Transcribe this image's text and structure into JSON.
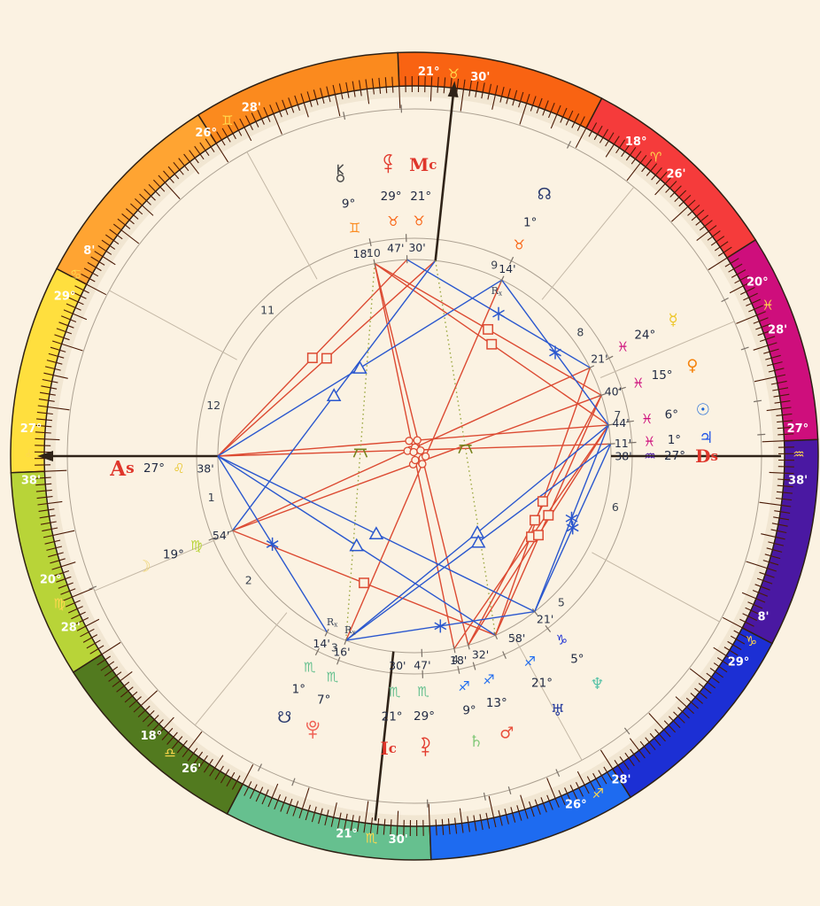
{
  "chart_data": {
    "type": "astrology-natal-wheel",
    "background": "#FBF2E2",
    "ascendant_longitude": 147.633,
    "ring": {
      "label_color": "#FFFFFF",
      "sign_glyph_color": "#FFD84D",
      "tick_color": "#4A1A06",
      "outline_color": "#2E2014"
    },
    "signs": [
      {
        "name": "aries",
        "glyph": "♈",
        "color": "#F53B3B"
      },
      {
        "name": "taurus",
        "glyph": "♉",
        "color": "#F96312"
      },
      {
        "name": "gemini",
        "glyph": "♊",
        "color": "#FB8A1E"
      },
      {
        "name": "cancer",
        "glyph": "♋",
        "color": "#FFA432"
      },
      {
        "name": "leo",
        "glyph": "♌",
        "color": "#FFDF3E",
        "label_color": "#E8C62C"
      },
      {
        "name": "virgo",
        "glyph": "♍",
        "color": "#B8D438"
      },
      {
        "name": "libra",
        "glyph": "♎",
        "color": "#527A1F"
      },
      {
        "name": "scorpio",
        "glyph": "♏",
        "color": "#66C08F"
      },
      {
        "name": "sagittarius",
        "glyph": "♐",
        "color": "#1E6BF0"
      },
      {
        "name": "capricorn",
        "glyph": "♑",
        "color": "#1C2FD4"
      },
      {
        "name": "aquarius",
        "glyph": "♒",
        "color": "#4A18A2"
      },
      {
        "name": "pisces",
        "glyph": "♓",
        "color": "#CE0E7C"
      }
    ],
    "house_cusps": [
      {
        "house": 1,
        "deg": "27°",
        "sign": "leo",
        "min": "38'",
        "lon": 147.633
      },
      {
        "house": 2,
        "deg": "20°",
        "sign": "virgo",
        "min": "28'",
        "lon": 170.467
      },
      {
        "house": 3,
        "deg": "18°",
        "sign": "libra",
        "min": "26'",
        "lon": 198.433
      },
      {
        "house": 4,
        "deg": "21°",
        "sign": "scorpio",
        "min": "30'",
        "lon": 231.5
      },
      {
        "house": 5,
        "deg": "26°",
        "sign": "sagittarius",
        "min": "28'",
        "lon": 266.467
      },
      {
        "house": 6,
        "deg": "29°",
        "sign": "capricorn",
        "min": "8'",
        "lon": 299.133
      },
      {
        "house": 7,
        "deg": "27°",
        "sign": "aquarius",
        "min": "38'",
        "lon": 327.633
      },
      {
        "house": 8,
        "deg": "20°",
        "sign": "pisces",
        "min": "28'",
        "lon": 350.467
      },
      {
        "house": 9,
        "deg": "18°",
        "sign": "aries",
        "min": "26'",
        "lon": 18.433
      },
      {
        "house": 10,
        "deg": "21°",
        "sign": "taurus",
        "min": "30'",
        "lon": 51.5
      },
      {
        "house": 11,
        "deg": "26°",
        "sign": "gemini",
        "min": "28'",
        "lon": 86.467
      },
      {
        "house": 12,
        "deg": "29°",
        "sign": "cancer",
        "min": "8'",
        "lon": 119.133
      }
    ],
    "points": [
      {
        "name": "sun",
        "kind": "planet",
        "glyph": "☉",
        "color": "#1B66D6",
        "deg": "6°",
        "sign": "pisces",
        "min": "44'",
        "retro": false,
        "lon": 336.733
      },
      {
        "name": "moon",
        "kind": "planet",
        "glyph": "☽",
        "color": "#EFD46F",
        "deg": "19°",
        "sign": "virgo",
        "min": "54'",
        "retro": false,
        "lon": 169.9
      },
      {
        "name": "mercury",
        "kind": "planet",
        "glyph": "☿",
        "color": "#EDC62A",
        "deg": "24°",
        "sign": "pisces",
        "min": "21'",
        "retro": false,
        "lon": 354.35,
        "dd": 1
      },
      {
        "name": "venus",
        "kind": "planet",
        "glyph": "♀",
        "color": "#F5820B",
        "deg": "15°",
        "sign": "pisces",
        "min": "40'",
        "retro": false,
        "lon": 345.667
      },
      {
        "name": "mars",
        "kind": "planet",
        "glyph": "♂",
        "color": "#E8503C",
        "deg": "13°",
        "sign": "sagittarius",
        "min": "32'",
        "retro": false,
        "lon": 253.533,
        "dd": 2.5
      },
      {
        "name": "jupiter",
        "kind": "planet",
        "glyph": "♃",
        "color": "#2457E6",
        "deg": "1°",
        "sign": "pisces",
        "min": "11'",
        "retro": false,
        "lon": 331.183
      },
      {
        "name": "saturn",
        "kind": "planet",
        "glyph": "♄",
        "color": "#82C878",
        "deg": "9°",
        "sign": "sagittarius",
        "min": "18'",
        "retro": false,
        "lon": 249.3,
        "dd": 0.5
      },
      {
        "name": "uranus",
        "kind": "planet",
        "glyph": "♅",
        "color": "#2B3F9E",
        "deg": "21°",
        "sign": "sagittarius",
        "min": "58'",
        "retro": false,
        "lon": 261.967,
        "dd": 5
      },
      {
        "name": "neptune",
        "kind": "planet",
        "glyph": "♆",
        "color": "#5BC3A8",
        "deg": "5°",
        "sign": "capricorn",
        "min": "21'",
        "retro": false,
        "lon": 275.35,
        "dd": 1
      },
      {
        "name": "pluto",
        "kind": "planet",
        "custom": "pluto",
        "color": "#EF6155",
        "deg": "7°",
        "sign": "scorpio",
        "min": "16'",
        "retro": true,
        "lon": 217.267
      },
      {
        "name": "north-node",
        "kind": "planet",
        "glyph": "☊",
        "color": "#2A3A6E",
        "deg": "1°",
        "sign": "taurus",
        "min": "14'",
        "retro": true,
        "lon": 31.233
      },
      {
        "name": "south-node",
        "kind": "planet",
        "glyph": "☋",
        "color": "#2A3A6E",
        "deg": "1°",
        "sign": "scorpio",
        "min": "14'",
        "retro": true,
        "lon": 211.233
      },
      {
        "name": "chiron",
        "kind": "planet",
        "custom": "chiron",
        "color": "#4A4A4A",
        "deg": "9°",
        "sign": "gemini",
        "min": "18'",
        "retro": false,
        "lon": 69.3,
        "dd": 3
      },
      {
        "name": "lilith",
        "kind": "planet",
        "custom": "lilith",
        "color": "#E23B2E",
        "deg": "29°",
        "sign": "taurus",
        "min": "47'",
        "retro": false,
        "lon": 59.783,
        "dd": 3
      },
      {
        "name": "priapus",
        "kind": "planet",
        "custom": "lilith",
        "mirror": true,
        "color": "#E23B2E",
        "deg": "29°",
        "sign": "scorpio",
        "min": "47'",
        "retro": false,
        "lon": 239.783
      },
      {
        "name": "ascendant",
        "kind": "angle",
        "glyph": "As",
        "color": "#DF362B",
        "deg": "27°",
        "sign": "leo",
        "min": "38'",
        "retro": false,
        "lon": 147.633,
        "nudge": [
          0,
          14
        ],
        "big": true
      },
      {
        "name": "midheaven",
        "kind": "angle",
        "glyph": "Mc",
        "color": "#DF362B",
        "deg": "21°",
        "sign": "taurus",
        "min": "30'",
        "retro": false,
        "lon": 51.5,
        "nudge": [
          -14,
          0
        ],
        "dd": 2
      },
      {
        "name": "descendant",
        "kind": "angle",
        "glyph": "Ds",
        "color": "#DF362B",
        "deg": "27°",
        "sign": "aquarius",
        "min": "38'",
        "retro": false,
        "lon": 327.633
      },
      {
        "name": "ic",
        "kind": "angle",
        "glyph": "Ic",
        "color": "#DF362B",
        "deg": "21°",
        "sign": "scorpio",
        "min": "30'",
        "retro": false,
        "lon": 231.5,
        "nudge": [
          6,
          2
        ]
      }
    ],
    "aspect_styles": {
      "square": {
        "color": "#DC4A32",
        "line": "solid"
      },
      "opposition": {
        "color": "#DC4A32",
        "line": "solid"
      },
      "trine": {
        "color": "#2A57CE",
        "line": "solid"
      },
      "sextile": {
        "color": "#2A57CE",
        "line": "solid"
      },
      "quincunx": {
        "color": "#9AA73F",
        "line": "dotted",
        "glyph_color": "#77821C"
      }
    },
    "aspects": [
      [
        "ascendant",
        "lilith",
        "square"
      ],
      [
        "ascendant",
        "midheaven",
        "square"
      ],
      [
        "chiron",
        "sun",
        "square"
      ],
      [
        "chiron",
        "venus",
        "square"
      ],
      [
        "mercury",
        "uranus",
        "square"
      ],
      [
        "venus",
        "mars",
        "square"
      ],
      [
        "venus",
        "uranus",
        "square"
      ],
      [
        "sun",
        "saturn",
        "square"
      ],
      [
        "sun",
        "mars",
        "square"
      ],
      [
        "moon",
        "uranus",
        "square"
      ],
      [
        "ascendant",
        "sun",
        "opposition"
      ],
      [
        "ascendant",
        "jupiter",
        "opposition"
      ],
      [
        "moon",
        "mercury",
        "opposition"
      ],
      [
        "moon",
        "venus",
        "opposition"
      ],
      [
        "chiron",
        "saturn",
        "opposition"
      ],
      [
        "chiron",
        "mars",
        "opposition"
      ],
      [
        "north-node",
        "pluto",
        "opposition"
      ],
      [
        "ascendant",
        "north-node",
        "trine"
      ],
      [
        "ascendant",
        "uranus",
        "trine"
      ],
      [
        "ascendant",
        "neptune",
        "trine"
      ],
      [
        "sun",
        "pluto",
        "trine"
      ],
      [
        "jupiter",
        "pluto",
        "trine"
      ],
      [
        "moon",
        "midheaven",
        "trine"
      ],
      [
        "ascendant",
        "south-node",
        "sextile"
      ],
      [
        "sun",
        "north-node",
        "sextile"
      ],
      [
        "mercury",
        "lilith",
        "sextile"
      ],
      [
        "sun",
        "neptune",
        "sextile"
      ],
      [
        "jupiter",
        "neptune",
        "sextile"
      ],
      [
        "neptune",
        "pluto",
        "sextile"
      ],
      [
        "midheaven",
        "uranus",
        "quincunx"
      ],
      [
        "chiron",
        "pluto",
        "quincunx"
      ]
    ],
    "house_number_color": "#39414F",
    "text_color": "#232C44",
    "retro_marker": "Rx"
  }
}
